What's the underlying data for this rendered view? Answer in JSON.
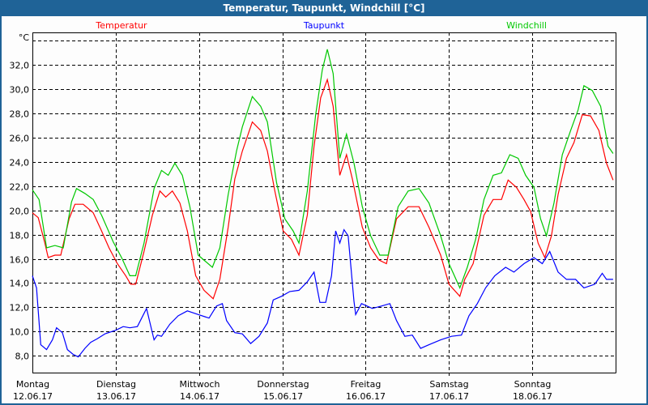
{
  "window": {
    "title": "Temperatur, Taupunkt, Windchill [°C]"
  },
  "chart_data": {
    "type": "line",
    "title": "Temperatur, Taupunkt, Windchill [°C]",
    "ylabel": "°C",
    "xlabel": "",
    "x_unit": "days since 12.06.17 00:00",
    "xlim": [
      0,
      7
    ],
    "ylim": [
      6.6,
      34.7
    ],
    "grid": true,
    "legend_placement": "top",
    "yticks": [
      8,
      10,
      12,
      14,
      16,
      18,
      20,
      22,
      24,
      26,
      28,
      30,
      32,
      34
    ],
    "ytick_labels": [
      "8,0",
      "10,0",
      "12,0",
      "14,0",
      "16,0",
      "18,0",
      "20,0",
      "22,0",
      "24,0",
      "26,0",
      "28,0",
      "30,0",
      "32,0",
      ""
    ],
    "xticks": [
      {
        "day": "Montag",
        "date": "12.06.17"
      },
      {
        "day": "Dienstag",
        "date": "13.06.17"
      },
      {
        "day": "Mittwoch",
        "date": "14.06.17"
      },
      {
        "day": "Donnerstag",
        "date": "15.06.17"
      },
      {
        "day": "Freitag",
        "date": "16.06.17"
      },
      {
        "day": "Samstag",
        "date": "17.06.17"
      },
      {
        "day": "Sonntag",
        "date": "18.06.17"
      }
    ],
    "series": [
      {
        "name": "Temperatur",
        "color": "#ff0000",
        "points": [
          [
            0,
            19.8
          ],
          [
            0.07,
            19.4
          ],
          [
            0.15,
            17.3
          ],
          [
            0.19,
            16.1
          ],
          [
            0.27,
            16.3
          ],
          [
            0.34,
            16.3
          ],
          [
            0.44,
            19.3
          ],
          [
            0.51,
            20.5
          ],
          [
            0.61,
            20.5
          ],
          [
            0.73,
            19.8
          ],
          [
            0.83,
            18.3
          ],
          [
            0.92,
            16.9
          ],
          [
            1.02,
            15.6
          ],
          [
            1.12,
            14.6
          ],
          [
            1.18,
            13.9
          ],
          [
            1.24,
            13.9
          ],
          [
            1.34,
            16.6
          ],
          [
            1.44,
            19.6
          ],
          [
            1.53,
            21.6
          ],
          [
            1.6,
            21.1
          ],
          [
            1.68,
            21.6
          ],
          [
            1.77,
            20.6
          ],
          [
            1.86,
            18.3
          ],
          [
            1.96,
            14.6
          ],
          [
            2.06,
            13.4
          ],
          [
            2.17,
            12.7
          ],
          [
            2.25,
            14.3
          ],
          [
            2.35,
            18.6
          ],
          [
            2.43,
            22.6
          ],
          [
            2.52,
            24.9
          ],
          [
            2.64,
            27.3
          ],
          [
            2.74,
            26.6
          ],
          [
            2.82,
            24.9
          ],
          [
            2.91,
            21.6
          ],
          [
            3.01,
            18.3
          ],
          [
            3.11,
            17.6
          ],
          [
            3.2,
            16.3
          ],
          [
            3.3,
            19.6
          ],
          [
            3.38,
            25.3
          ],
          [
            3.46,
            29.3
          ],
          [
            3.54,
            30.8
          ],
          [
            3.61,
            28.6
          ],
          [
            3.69,
            22.9
          ],
          [
            3.77,
            24.6
          ],
          [
            3.84,
            22.6
          ],
          [
            3.96,
            18.6
          ],
          [
            4.06,
            16.9
          ],
          [
            4.16,
            15.9
          ],
          [
            4.25,
            15.6
          ],
          [
            4.37,
            19.3
          ],
          [
            4.51,
            20.3
          ],
          [
            4.64,
            20.3
          ],
          [
            4.76,
            18.6
          ],
          [
            4.9,
            16.3
          ],
          [
            5.0,
            13.9
          ],
          [
            5.13,
            12.9
          ],
          [
            5.19,
            14.3
          ],
          [
            5.29,
            15.6
          ],
          [
            5.42,
            19.6
          ],
          [
            5.53,
            20.9
          ],
          [
            5.63,
            20.9
          ],
          [
            5.71,
            22.5
          ],
          [
            5.81,
            21.9
          ],
          [
            5.9,
            20.9
          ],
          [
            5.98,
            19.9
          ],
          [
            6.07,
            17.3
          ],
          [
            6.15,
            16.1
          ],
          [
            6.23,
            17.9
          ],
          [
            6.31,
            21.3
          ],
          [
            6.41,
            24.3
          ],
          [
            6.5,
            25.6
          ],
          [
            6.6,
            27.9
          ],
          [
            6.7,
            27.8
          ],
          [
            6.8,
            26.6
          ],
          [
            6.89,
            23.9
          ],
          [
            6.97,
            22.5
          ]
        ]
      },
      {
        "name": "Taupunkt",
        "color": "#0000ff",
        "points": [
          [
            0,
            14.6
          ],
          [
            0.05,
            13.6
          ],
          [
            0.1,
            8.9
          ],
          [
            0.17,
            8.5
          ],
          [
            0.24,
            9.3
          ],
          [
            0.29,
            10.3
          ],
          [
            0.36,
            9.9
          ],
          [
            0.42,
            8.5
          ],
          [
            0.49,
            8.1
          ],
          [
            0.55,
            7.9
          ],
          [
            0.63,
            8.6
          ],
          [
            0.7,
            9.1
          ],
          [
            0.78,
            9.4
          ],
          [
            0.87,
            9.8
          ],
          [
            1.0,
            10.1
          ],
          [
            1.09,
            10.4
          ],
          [
            1.17,
            10.3
          ],
          [
            1.26,
            10.4
          ],
          [
            1.37,
            11.9
          ],
          [
            1.46,
            9.3
          ],
          [
            1.5,
            9.7
          ],
          [
            1.55,
            9.6
          ],
          [
            1.65,
            10.6
          ],
          [
            1.75,
            11.3
          ],
          [
            1.86,
            11.7
          ],
          [
            1.99,
            11.4
          ],
          [
            2.12,
            11.1
          ],
          [
            2.21,
            12.1
          ],
          [
            2.28,
            12.3
          ],
          [
            2.33,
            10.9
          ],
          [
            2.43,
            9.9
          ],
          [
            2.52,
            9.8
          ],
          [
            2.62,
            9.0
          ],
          [
            2.72,
            9.6
          ],
          [
            2.82,
            10.7
          ],
          [
            2.89,
            12.6
          ],
          [
            2.99,
            12.9
          ],
          [
            3.09,
            13.3
          ],
          [
            3.2,
            13.4
          ],
          [
            3.3,
            14.1
          ],
          [
            3.38,
            14.9
          ],
          [
            3.45,
            12.4
          ],
          [
            3.52,
            12.4
          ],
          [
            3.59,
            14.6
          ],
          [
            3.64,
            18.3
          ],
          [
            3.69,
            17.3
          ],
          [
            3.74,
            18.4
          ],
          [
            3.79,
            17.9
          ],
          [
            3.86,
            12.5
          ],
          [
            3.88,
            11.4
          ],
          [
            3.95,
            12.3
          ],
          [
            4.08,
            11.9
          ],
          [
            4.19,
            12.1
          ],
          [
            4.29,
            12.3
          ],
          [
            4.37,
            10.9
          ],
          [
            4.47,
            9.6
          ],
          [
            4.56,
            9.7
          ],
          [
            4.66,
            8.6
          ],
          [
            4.76,
            8.9
          ],
          [
            4.9,
            9.3
          ],
          [
            5.03,
            9.6
          ],
          [
            5.15,
            9.7
          ],
          [
            5.24,
            11.3
          ],
          [
            5.34,
            12.3
          ],
          [
            5.44,
            13.6
          ],
          [
            5.55,
            14.6
          ],
          [
            5.68,
            15.3
          ],
          [
            5.78,
            14.9
          ],
          [
            5.9,
            15.6
          ],
          [
            6.02,
            16.1
          ],
          [
            6.12,
            15.6
          ],
          [
            6.21,
            16.6
          ],
          [
            6.31,
            14.9
          ],
          [
            6.41,
            14.3
          ],
          [
            6.52,
            14.3
          ],
          [
            6.62,
            13.6
          ],
          [
            6.75,
            13.9
          ],
          [
            6.84,
            14.8
          ],
          [
            6.89,
            14.3
          ],
          [
            6.97,
            14.3
          ]
        ]
      },
      {
        "name": "Windchill",
        "color": "#00c800",
        "points": [
          [
            0,
            21.7
          ],
          [
            0.08,
            20.9
          ],
          [
            0.17,
            16.9
          ],
          [
            0.27,
            17.1
          ],
          [
            0.37,
            16.9
          ],
          [
            0.47,
            20.7
          ],
          [
            0.53,
            21.8
          ],
          [
            0.63,
            21.4
          ],
          [
            0.73,
            20.9
          ],
          [
            0.83,
            19.6
          ],
          [
            0.97,
            17.4
          ],
          [
            1.07,
            16.1
          ],
          [
            1.17,
            14.6
          ],
          [
            1.24,
            14.6
          ],
          [
            1.34,
            17.3
          ],
          [
            1.46,
            21.8
          ],
          [
            1.55,
            23.3
          ],
          [
            1.63,
            22.9
          ],
          [
            1.71,
            23.9
          ],
          [
            1.8,
            22.9
          ],
          [
            1.89,
            20.3
          ],
          [
            1.99,
            16.3
          ],
          [
            2.16,
            15.3
          ],
          [
            2.25,
            16.9
          ],
          [
            2.35,
            21.3
          ],
          [
            2.45,
            24.9
          ],
          [
            2.52,
            26.9
          ],
          [
            2.64,
            29.4
          ],
          [
            2.74,
            28.6
          ],
          [
            2.82,
            27.3
          ],
          [
            2.93,
            22.3
          ],
          [
            3.03,
            19.3
          ],
          [
            3.13,
            18.3
          ],
          [
            3.2,
            17.3
          ],
          [
            3.3,
            21.6
          ],
          [
            3.4,
            27.9
          ],
          [
            3.48,
            31.6
          ],
          [
            3.54,
            33.3
          ],
          [
            3.61,
            31.3
          ],
          [
            3.69,
            24.3
          ],
          [
            3.77,
            26.3
          ],
          [
            3.86,
            23.9
          ],
          [
            3.96,
            20.3
          ],
          [
            4.06,
            17.9
          ],
          [
            4.17,
            16.3
          ],
          [
            4.27,
            16.3
          ],
          [
            4.39,
            20.3
          ],
          [
            4.51,
            21.6
          ],
          [
            4.64,
            21.8
          ],
          [
            4.76,
            20.6
          ],
          [
            4.9,
            17.9
          ],
          [
            5.0,
            15.6
          ],
          [
            5.13,
            13.6
          ],
          [
            5.22,
            15.3
          ],
          [
            5.32,
            17.6
          ],
          [
            5.42,
            20.9
          ],
          [
            5.53,
            22.9
          ],
          [
            5.63,
            23.1
          ],
          [
            5.73,
            24.6
          ],
          [
            5.83,
            24.3
          ],
          [
            5.92,
            22.9
          ],
          [
            6.02,
            21.9
          ],
          [
            6.1,
            19.3
          ],
          [
            6.17,
            17.9
          ],
          [
            6.26,
            20.6
          ],
          [
            6.36,
            24.6
          ],
          [
            6.46,
            26.6
          ],
          [
            6.55,
            28.3
          ],
          [
            6.62,
            30.3
          ],
          [
            6.72,
            29.9
          ],
          [
            6.82,
            28.6
          ],
          [
            6.91,
            25.3
          ],
          [
            6.97,
            24.7
          ]
        ]
      }
    ]
  }
}
